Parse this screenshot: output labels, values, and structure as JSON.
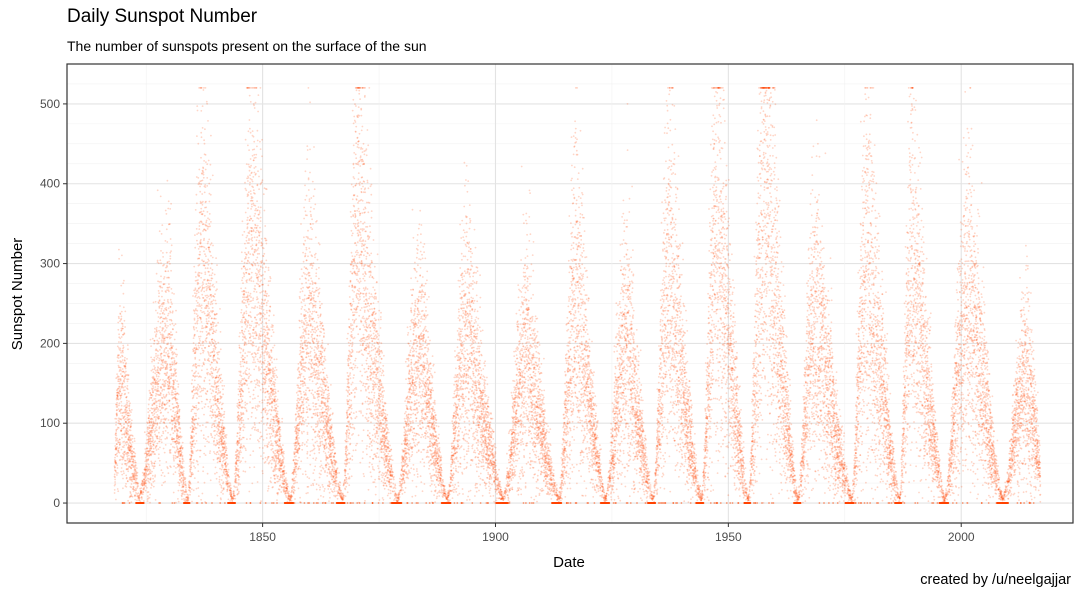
{
  "chart_data": {
    "type": "scatter",
    "title": "Daily Sunspot Number",
    "subtitle": "The number of sunspots present on the surface of the sun",
    "caption": "created by /u/neelgajjar",
    "xlabel": "Date",
    "ylabel": "Sunspot Number",
    "xlim": [
      1808,
      2024
    ],
    "ylim": [
      -25,
      550
    ],
    "x_ticks": [
      1850,
      1900,
      1950,
      2000
    ],
    "y_ticks": [
      0,
      100,
      200,
      300,
      400,
      500
    ],
    "grid": true,
    "legend": "none",
    "point_color": "#FF4500",
    "data_start_year": 1818,
    "data_end_year": 2017,
    "cycles": [
      {
        "start": 1818.0,
        "max_year": 1819.5,
        "peak": 160,
        "min": 20
      },
      {
        "start": 1823.3,
        "max_year": 1829.9,
        "peak": 195,
        "min": 5
      },
      {
        "start": 1833.9,
        "max_year": 1837.2,
        "peak": 300,
        "min": 5
      },
      {
        "start": 1843.5,
        "max_year": 1848.1,
        "peak": 300,
        "min": 5
      },
      {
        "start": 1855.9,
        "max_year": 1860.1,
        "peak": 230,
        "min": 5
      },
      {
        "start": 1867.2,
        "max_year": 1870.6,
        "peak": 320,
        "min": 5
      },
      {
        "start": 1878.9,
        "max_year": 1883.9,
        "peak": 190,
        "min": 5
      },
      {
        "start": 1889.6,
        "max_year": 1894.1,
        "peak": 210,
        "min": 5
      },
      {
        "start": 1901.7,
        "max_year": 1907.0,
        "peak": 180,
        "min": 5
      },
      {
        "start": 1913.6,
        "max_year": 1917.6,
        "peak": 250,
        "min": 5
      },
      {
        "start": 1923.6,
        "max_year": 1928.4,
        "peak": 200,
        "min": 5
      },
      {
        "start": 1933.8,
        "max_year": 1937.4,
        "peak": 280,
        "min": 5
      },
      {
        "start": 1944.2,
        "max_year": 1947.9,
        "peak": 330,
        "min": 5
      },
      {
        "start": 1954.3,
        "max_year": 1958.2,
        "peak": 380,
        "min": 5
      },
      {
        "start": 1964.9,
        "max_year": 1968.9,
        "peak": 230,
        "min": 5
      },
      {
        "start": 1976.5,
        "max_year": 1979.9,
        "peak": 300,
        "min": 5
      },
      {
        "start": 1986.8,
        "max_year": 1989.6,
        "peak": 290,
        "min": 5
      },
      {
        "start": 1996.4,
        "max_year": 2001.9,
        "peak": 250,
        "min": 5
      },
      {
        "start": 2008.9,
        "max_year": 2014.3,
        "peak": 150,
        "min": 5
      }
    ]
  }
}
